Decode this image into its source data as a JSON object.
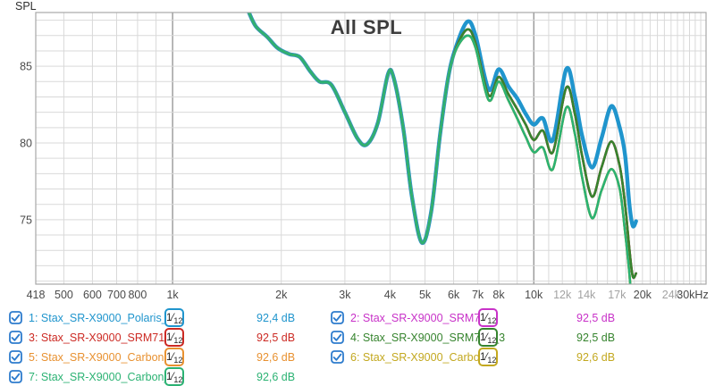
{
  "chart": {
    "title": "All SPL",
    "y_axis_label": "SPL",
    "x_range_hz": [
      418,
      30000
    ],
    "y_range_db": [
      70.8,
      88.5
    ],
    "x_ticks": [
      {
        "hz": 418,
        "label": "418"
      },
      {
        "hz": 500,
        "label": "500"
      },
      {
        "hz": 600,
        "label": "600"
      },
      {
        "hz": 700,
        "label": "700"
      },
      {
        "hz": 800,
        "label": "800"
      },
      {
        "hz": 1000,
        "label": "1k"
      },
      {
        "hz": 2000,
        "label": "2k"
      },
      {
        "hz": 3000,
        "label": "3k"
      },
      {
        "hz": 4000,
        "label": "4k"
      },
      {
        "hz": 5000,
        "label": "5k"
      },
      {
        "hz": 6000,
        "label": "6k"
      },
      {
        "hz": 7000,
        "label": "7k"
      },
      {
        "hz": 8000,
        "label": "8k"
      },
      {
        "hz": 10000,
        "label": "10k"
      },
      {
        "hz": 12000,
        "label": "12k",
        "muted": true
      },
      {
        "hz": 14000,
        "label": "14k",
        "muted": true
      },
      {
        "hz": 17000,
        "label": "17k",
        "muted": true
      },
      {
        "hz": 20000,
        "label": "20k"
      },
      {
        "hz": 24000,
        "label": "24k",
        "muted": true
      },
      {
        "hz": 30000,
        "label": "30kHz"
      }
    ],
    "y_ticks": [
      {
        "db": 85,
        "label": "85"
      },
      {
        "db": 80,
        "label": "80"
      },
      {
        "db": 75,
        "label": "75"
      }
    ],
    "grid": {
      "minor_color": "#d9d9d9",
      "major_color": "#6f6f6f",
      "border_color": "#a8a8a8",
      "major_lines_hz": [
        1000,
        10000
      ],
      "tick_label_color": "#4a4a4a",
      "tick_label_muted_color": "#a2a2a2"
    }
  },
  "chart_data": {
    "type": "line",
    "title": "All SPL",
    "xlabel": "Frequency (Hz)",
    "ylabel": "SPL (dB)",
    "x_unit": "kHz",
    "x_scale": "log",
    "x": [
      1.62,
      1.7,
      1.83,
      1.95,
      2.1,
      2.25,
      2.4,
      2.55,
      2.75,
      3.0,
      3.25,
      3.45,
      3.7,
      3.95,
      4.1,
      4.35,
      4.6,
      4.9,
      5.2,
      5.5,
      5.8,
      6.1,
      6.55,
      6.9,
      7.5,
      8.0,
      8.5,
      9.0,
      9.5,
      10.0,
      10.6,
      11.3,
      12.3,
      13.0,
      13.6,
      14.5,
      15.4,
      16.4,
      17.3,
      17.9,
      18.4,
      18.8,
      19.2
    ],
    "series": [
      {
        "num": 1,
        "name": "Stax_SR-X9000_Polaris_V3",
        "color": "#2095cd",
        "level": "92,4 dB",
        "smoothing": "1/12",
        "values": [
          88.6,
          87.6,
          86.9,
          86.2,
          85.8,
          85.6,
          84.7,
          84.0,
          83.8,
          82.0,
          80.3,
          79.9,
          81.3,
          84.5,
          84.2,
          81.0,
          76.5,
          73.5,
          75.5,
          80.5,
          84.3,
          86.3,
          87.9,
          87.0,
          83.5,
          84.8,
          83.7,
          82.9,
          81.9,
          81.2,
          81.6,
          80.2,
          84.8,
          83.0,
          80.5,
          78.4,
          80.3,
          82.4,
          81.0,
          79.2,
          76.0,
          74.6,
          74.9
        ]
      },
      {
        "num": 2,
        "name": "Stax_SR-X9000_SRM717",
        "color": "#c832c8",
        "level": "92,5 dB",
        "smoothing": "1/12",
        "values": [
          88.6,
          87.6,
          86.9,
          86.2,
          85.8,
          85.6,
          84.7,
          84.0,
          83.8,
          82.0,
          80.3,
          79.9,
          81.3,
          84.5,
          84.2,
          81.0,
          76.5,
          73.5,
          75.5,
          80.5,
          84.3,
          86.2,
          87.4,
          86.5,
          83.1,
          84.3,
          83.2,
          82.2,
          81.2,
          80.2,
          80.8,
          79.4,
          83.6,
          81.9,
          79.2,
          76.5,
          78.4,
          80.1,
          78.5,
          76.0,
          73.1,
          71.3,
          71.5
        ]
      },
      {
        "num": 3,
        "name": "Stax_SR-X9000_SRM717_2",
        "color": "#cc2a23",
        "level": "92,5 dB",
        "smoothing": "1/12",
        "values": [
          88.6,
          87.6,
          86.9,
          86.2,
          85.8,
          85.6,
          84.7,
          84.0,
          83.8,
          82.0,
          80.3,
          79.9,
          81.3,
          84.5,
          84.2,
          81.0,
          76.5,
          73.5,
          75.5,
          80.5,
          84.3,
          86.2,
          87.4,
          86.5,
          83.1,
          84.3,
          83.2,
          82.2,
          81.2,
          80.2,
          80.8,
          79.4,
          83.6,
          81.9,
          79.2,
          76.5,
          78.4,
          80.1,
          78.5,
          76.0,
          73.1,
          71.3,
          71.5
        ]
      },
      {
        "num": 4,
        "name": "Stax_SR-X9000_SRM717_3",
        "color": "#36842e",
        "level": "92,5 dB",
        "smoothing": "1/12",
        "values": [
          88.6,
          87.6,
          86.9,
          86.2,
          85.8,
          85.6,
          84.7,
          84.0,
          83.8,
          82.0,
          80.3,
          79.9,
          81.3,
          84.5,
          84.2,
          81.0,
          76.5,
          73.5,
          75.5,
          80.5,
          84.3,
          86.2,
          87.4,
          86.5,
          83.1,
          84.3,
          83.2,
          82.2,
          81.2,
          80.2,
          80.8,
          79.4,
          83.6,
          81.9,
          79.2,
          76.5,
          78.4,
          80.1,
          78.5,
          76.0,
          73.1,
          71.3,
          71.5
        ]
      },
      {
        "num": 5,
        "name": "Stax_SR-X9000_Carbon",
        "color": "#e89130",
        "level": "92,6 dB",
        "smoothing": "1/12",
        "values": [
          88.6,
          87.6,
          86.9,
          86.2,
          85.8,
          85.6,
          84.7,
          84.0,
          83.8,
          82.0,
          80.3,
          79.9,
          81.3,
          84.5,
          84.2,
          81.0,
          76.5,
          73.5,
          75.5,
          80.5,
          84.3,
          86.1,
          87.0,
          86.2,
          82.8,
          84.0,
          82.8,
          81.6,
          80.4,
          79.4,
          79.7,
          78.3,
          82.3,
          80.6,
          77.8,
          75.1,
          76.9,
          78.3,
          77.0,
          74.2,
          71.5,
          68.8,
          68.0
        ]
      },
      {
        "num": 6,
        "name": "Stax_SR-X9000_Carbon_2",
        "color": "#c3a81f",
        "level": "92,6 dB",
        "smoothing": "1/12",
        "values": [
          88.6,
          87.6,
          86.9,
          86.2,
          85.8,
          85.6,
          84.7,
          84.0,
          83.8,
          82.0,
          80.3,
          79.9,
          81.3,
          84.5,
          84.2,
          81.0,
          76.5,
          73.5,
          75.5,
          80.5,
          84.3,
          86.1,
          87.0,
          86.2,
          82.8,
          84.0,
          82.8,
          81.6,
          80.4,
          79.4,
          79.7,
          78.3,
          82.3,
          80.6,
          77.8,
          75.1,
          76.9,
          78.3,
          77.0,
          74.2,
          71.5,
          68.8,
          68.0
        ]
      },
      {
        "num": 7,
        "name": "Stax_SR-X9000_Carbon_3",
        "color": "#2bb273",
        "level": "92,6 dB",
        "smoothing": "1/12",
        "values": [
          88.6,
          87.6,
          86.9,
          86.2,
          85.8,
          85.6,
          84.7,
          84.0,
          83.8,
          82.0,
          80.3,
          79.9,
          81.3,
          84.5,
          84.2,
          81.0,
          76.5,
          73.5,
          75.5,
          80.5,
          84.3,
          86.1,
          87.0,
          86.2,
          82.8,
          84.0,
          82.8,
          81.6,
          80.4,
          79.4,
          79.7,
          78.3,
          82.3,
          80.6,
          77.8,
          75.1,
          76.9,
          78.3,
          77.0,
          74.2,
          71.5,
          68.8,
          68.0
        ]
      }
    ]
  },
  "legend": {
    "checkbox_color": "#2e7ccd",
    "checked": true,
    "columns": [
      [
        1,
        3,
        5,
        7
      ],
      [
        2,
        4,
        6
      ]
    ]
  }
}
